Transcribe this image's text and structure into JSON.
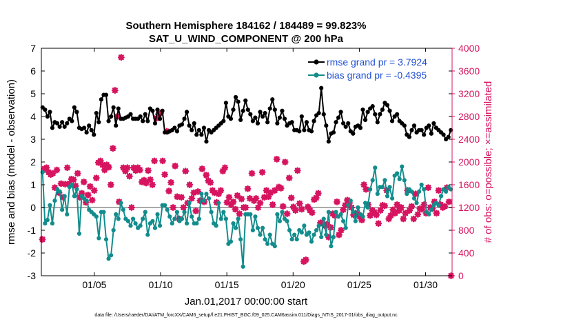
{
  "chart_data": {
    "type": "line",
    "title_line1": "Southern Hemisphere 184162 / 184489 = 99.823%",
    "title_line2": "SAT_U_WIND_COMPONENT @ 200 hPa",
    "ylabel_left": "rmse and bias (model - observation)",
    "ylabel_right": "# of obs: o=possible; ×=assimilated",
    "xlabel": "Jan.01,2017 00:00:00 start",
    "footnote": "data file: /Users/raeder/DAI/ATM_forcXX/CAM6_setup/f.e21.FHIST_BGC.f09_025.CAM6assim.011/Diags_NTrS_2017-01/obs_diag_output.nc",
    "x_range_days": [
      1,
      32
    ],
    "ylim_left": [
      -3,
      7
    ],
    "ylim_right": [
      0,
      4000
    ],
    "yticks_left": [
      -3,
      -2,
      -1,
      0,
      1,
      2,
      3,
      4,
      5,
      6,
      7
    ],
    "yticks_right": [
      0,
      400,
      800,
      1200,
      1600,
      2000,
      2400,
      2800,
      3200,
      3600,
      4000
    ],
    "xticks": [
      {
        "day": 5,
        "label": "01/05"
      },
      {
        "day": 10,
        "label": "01/10"
      },
      {
        "day": 15,
        "label": "01/15"
      },
      {
        "day": 20,
        "label": "01/20"
      },
      {
        "day": 25,
        "label": "01/25"
      },
      {
        "day": 30,
        "label": "01/30"
      }
    ],
    "grid": false,
    "legend_position": "top-right",
    "colors": {
      "rmse": "#000000",
      "bias": "#128c8c",
      "obs": "#d6145f",
      "zero_line": "#aaaaaa",
      "right_axis": "#d6145f",
      "legend_text": "#1f4fd6"
    },
    "series": [
      {
        "name": "rmse grand pr = 3.7924",
        "axis": "left",
        "values": [
          4.4,
          4.3,
          4.0,
          4.2,
          3.5,
          3.75,
          3.7,
          3.55,
          3.75,
          3.55,
          3.7,
          3.9,
          3.8,
          4.4,
          4.2,
          3.5,
          3.45,
          3.5,
          3.3,
          3.6,
          3.4,
          3.2,
          4.15,
          3.75,
          4.75,
          4.95,
          4.95,
          3.8,
          4.0,
          4.4,
          3.6,
          4.35,
          3.9,
          3.9,
          3.95,
          4.0,
          4.1,
          3.9,
          3.9,
          3.9,
          4.0,
          3.8,
          4.1,
          3.8,
          4.35,
          4.25,
          3.7,
          4.3,
          3.9,
          4.25,
          3.3,
          3.3,
          3.35,
          3.4,
          3.5,
          3.35,
          3.6,
          3.65,
          3.9,
          4.2,
          3.6,
          3.4,
          3.7,
          3.2,
          3.4,
          3.2,
          3.5,
          2.9,
          3.4,
          3.3,
          3.4,
          3.5,
          3.6,
          3.7,
          3.8,
          4.6,
          4.0,
          3.9,
          4.3,
          4.85,
          4.65,
          3.85,
          4.25,
          4.7,
          4.3,
          4.1,
          3.8,
          3.95,
          3.7,
          4.2,
          4.0,
          4.15,
          3.75,
          4.35,
          4.75,
          4.3,
          3.7,
          3.95,
          4.25,
          3.9,
          3.6,
          3.7,
          3.75,
          3.4,
          3.4,
          3.35,
          4.0,
          3.4,
          3.75,
          3.4,
          3.35,
          3.8,
          4.05,
          4.15,
          5.25,
          4.1,
          3.6,
          2.9,
          3.25,
          3.3,
          3.75,
          3.95,
          4.2,
          3.7,
          3.55,
          3.7,
          3.35,
          3.25,
          3.55,
          3.6,
          3.5,
          4.3,
          3.85,
          4.2,
          4.35,
          4.45,
          4.1,
          3.75,
          4.1,
          4.3,
          4.6,
          4.5,
          4.25,
          3.8,
          4.0,
          4.1,
          3.8,
          3.7,
          3.6,
          3.2,
          3.1,
          3.4,
          3.6,
          3.3,
          3.4,
          3.4,
          3.2,
          3.5,
          3.6,
          3.25,
          3.7,
          3.5,
          3.4,
          3.3,
          3.2,
          3.0,
          3.1,
          3.4
        ]
      },
      {
        "name": "bias grand pr = -0.4395",
        "axis": "left",
        "values": [
          1.55,
          -0.7,
          -0.55,
          0.1,
          -0.7,
          0.3,
          0.8,
          0.7,
          -0.1,
          0.5,
          -0.3,
          0.9,
          1.0,
          0.5,
          0.8,
          -1.15,
          0.5,
          0.4,
          0.3,
          -0.1,
          -0.2,
          -0.3,
          -0.4,
          -1.35,
          -0.2,
          -0.2,
          -1.4,
          -2.25,
          -2.1,
          -1.0,
          -0.3,
          -0.5,
          0.2,
          -0.1,
          -0.5,
          -0.6,
          -0.8,
          -0.5,
          -0.7,
          -0.9,
          -0.8,
          -0.5,
          -0.2,
          -1.2,
          -0.7,
          -0.6,
          -0.9,
          -0.3,
          -0.8,
          0.1,
          0.1,
          -0.1,
          -0.4,
          -0.7,
          -0.5,
          -0.2,
          -0.6,
          -0.5,
          -0.2,
          -0.7,
          0.2,
          -0.4,
          -0.7,
          -0.7,
          -0.5,
          0.6,
          0.3,
          0.6,
          0.4,
          -0.2,
          -0.7,
          -0.8,
          0.2,
          -0.5,
          -0.2,
          -0.5,
          -1.6,
          -1.5,
          -0.7,
          -0.9,
          -0.5,
          -1.4,
          -2.6,
          -0.3,
          -0.3,
          -0.3,
          -1.0,
          -0.4,
          -0.9,
          -1.2,
          -0.9,
          -1.4,
          -1.6,
          -1.2,
          -1.6,
          -1.7,
          -0.3,
          -0.6,
          -0.2,
          -0.5,
          -0.6,
          -1.0,
          -1.4,
          -1.2,
          -1.4,
          -1.0,
          -1.1,
          -0.8,
          -1.2,
          -1.1,
          -1.5,
          -1.2,
          -1.0,
          -0.8,
          -1.3,
          -0.5,
          -1.2,
          -0.2,
          -1.7,
          -1.3,
          -0.2,
          -0.4,
          -0.3,
          -0.6,
          -0.9,
          0.1,
          0.3,
          -0.2,
          -0.6,
          0.0,
          -0.3,
          -0.4,
          0.2,
          0.0,
          0.8,
          1.2,
          1.75,
          0.6,
          0.9,
          0.9,
          1.2,
          0.5,
          0.9,
          0.4,
          1.4,
          1.5,
          1.25,
          1.8,
          1.2,
          0.6,
          0.8,
          0.7,
          0.4,
          0.2,
          0.7,
          1.0,
          0.8,
          -0.2,
          -0.3,
          -0.1,
          0.1,
          0.2,
          0.1,
          0.5,
          0.8,
          0.7,
          0.9,
          0.8
        ]
      },
      {
        "name": "obs",
        "axis": "right",
        "values": [
          640,
          1880,
          1900,
          1820,
          1780,
          1800,
          1550,
          1860,
          1460,
          1620,
          1380,
          1610,
          1900,
          1620,
          1700,
          1690,
          1580,
          1800,
          1380,
          1450,
          1650,
          1290,
          1420,
          1570,
          1330,
          1500,
          1720,
          1990,
          2020,
          1950,
          1860,
          1950,
          1910,
          1600,
          2240,
          3260,
          2800,
          1300,
          3840,
          1900,
          1840,
          1900,
          1750,
          1200,
          1900,
          1850,
          1900,
          1860,
          1650,
          1680,
          1630,
          1850,
          1690,
          1600,
          2020,
          2770,
          2840,
          2860,
          2020,
          1780,
          2540,
          1490,
          1640,
          1200,
          1930,
          1390,
          1000,
          1380,
          1200,
          1840,
          1280,
          1600,
          1360,
          1460,
          1140,
          1480,
          1320,
          1880,
          1300,
          1770,
          1670,
          1640,
          1500,
          1460,
          1290,
          1440,
          1500,
          1840,
          1900,
          1290,
          1380,
          1250,
          1300,
          1170,
          1410,
          1090,
          1350,
          1200,
          1200,
          1530,
          1360,
          1800,
          1320,
          1360,
          1200,
          1280,
          1820,
          1380,
          1500,
          1390,
          1460,
          1250,
          1500,
          2050,
          1560,
          1540,
          1220,
          2000,
          1090,
          1720,
          1370,
          1210,
          1150,
          1850,
          1270,
          1170,
          250,
          280,
          1210,
          1150,
          1110,
          1340,
          1370,
          1450,
          930,
          940,
          880,
          900,
          680,
          850,
          1090,
          1060,
          1300,
          720,
          800,
          1160,
          1240,
          1330,
          1280,
          1200,
          1070,
          1100,
          1080,
          1040,
          980,
          1600,
          1520,
          1250,
          1060,
          1150,
          1120,
          1070,
          920,
          1150,
          1240,
          1230,
          1500,
          1000,
          1060,
          1160,
          1100,
          1250,
          1150,
          1200,
          1000,
          1100,
          1500,
          1150,
          1220,
          1000,
          1440,
          1080,
          1180,
          1170,
          1250,
          1100,
          1550,
          1200,
          1180,
          1300,
          1100,
          1500,
          1250,
          1200,
          1220,
          1550,
          1300,
          0
        ]
      }
    ]
  }
}
